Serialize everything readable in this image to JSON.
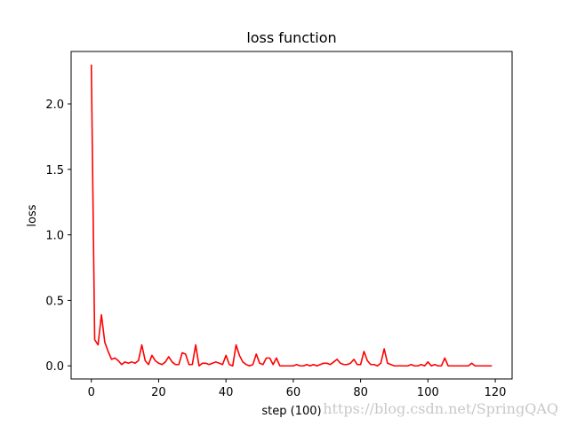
{
  "chart_data": {
    "type": "line",
    "title": "loss function",
    "xlabel": "step (100)",
    "ylabel": "loss",
    "xlim": [
      -6,
      125
    ],
    "ylim": [
      -0.1,
      2.4
    ],
    "xticks": [
      0,
      20,
      40,
      60,
      80,
      100,
      120
    ],
    "yticks": [
      0.0,
      0.5,
      1.0,
      1.5,
      2.0
    ],
    "xtick_labels": [
      "0",
      "20",
      "40",
      "60",
      "80",
      "100",
      "120"
    ],
    "ytick_labels": [
      "0.0",
      "0.5",
      "1.0",
      "1.5",
      "2.0"
    ],
    "grid": false,
    "legend": "none",
    "series": [
      {
        "color": "#ff0000",
        "x": [
          0,
          1,
          2,
          3,
          4,
          5,
          6,
          7,
          8,
          9,
          10,
          11,
          12,
          13,
          14,
          15,
          16,
          17,
          18,
          19,
          20,
          21,
          22,
          23,
          24,
          25,
          26,
          27,
          28,
          29,
          30,
          31,
          32,
          33,
          34,
          35,
          36,
          37,
          38,
          39,
          40,
          41,
          42,
          43,
          44,
          45,
          46,
          47,
          48,
          49,
          50,
          51,
          52,
          53,
          54,
          55,
          56,
          57,
          58,
          59,
          60,
          61,
          62,
          63,
          64,
          65,
          66,
          67,
          68,
          69,
          70,
          71,
          72,
          73,
          74,
          75,
          76,
          77,
          78,
          79,
          80,
          81,
          82,
          83,
          84,
          85,
          86,
          87,
          88,
          89,
          90,
          91,
          92,
          93,
          94,
          95,
          96,
          97,
          98,
          99,
          100,
          101,
          102,
          103,
          104,
          105,
          106,
          107,
          108,
          109,
          110,
          111,
          112,
          113,
          114,
          115,
          116,
          117,
          118,
          119
        ],
        "y": [
          2.3,
          0.2,
          0.16,
          0.39,
          0.18,
          0.11,
          0.05,
          0.06,
          0.04,
          0.01,
          0.03,
          0.02,
          0.03,
          0.02,
          0.04,
          0.16,
          0.04,
          0.01,
          0.08,
          0.04,
          0.02,
          0.01,
          0.03,
          0.07,
          0.03,
          0.01,
          0.01,
          0.1,
          0.09,
          0.01,
          0.01,
          0.16,
          0.0,
          0.02,
          0.02,
          0.01,
          0.02,
          0.03,
          0.02,
          0.01,
          0.08,
          0.01,
          0.0,
          0.16,
          0.08,
          0.03,
          0.01,
          0.0,
          0.01,
          0.09,
          0.02,
          0.01,
          0.06,
          0.06,
          0.01,
          0.06,
          0.0,
          0.0,
          0.0,
          0.0,
          0.0,
          0.01,
          0.0,
          0.0,
          0.01,
          0.0,
          0.01,
          0.0,
          0.01,
          0.02,
          0.02,
          0.01,
          0.03,
          0.05,
          0.02,
          0.01,
          0.01,
          0.02,
          0.05,
          0.01,
          0.01,
          0.11,
          0.04,
          0.01,
          0.01,
          0.0,
          0.02,
          0.13,
          0.02,
          0.01,
          0.0,
          0.0,
          0.0,
          0.0,
          0.0,
          0.01,
          0.0,
          0.0,
          0.01,
          0.0,
          0.03,
          0.0,
          0.01,
          0.0,
          0.0,
          0.06,
          0.0,
          0.0,
          0.0,
          0.0,
          0.0,
          0.0,
          0.0,
          0.02,
          0.0,
          0.0,
          0.0,
          0.0,
          0.0,
          0.0
        ]
      }
    ]
  },
  "watermark": "https://blog.csdn.net/SpringQAQ"
}
